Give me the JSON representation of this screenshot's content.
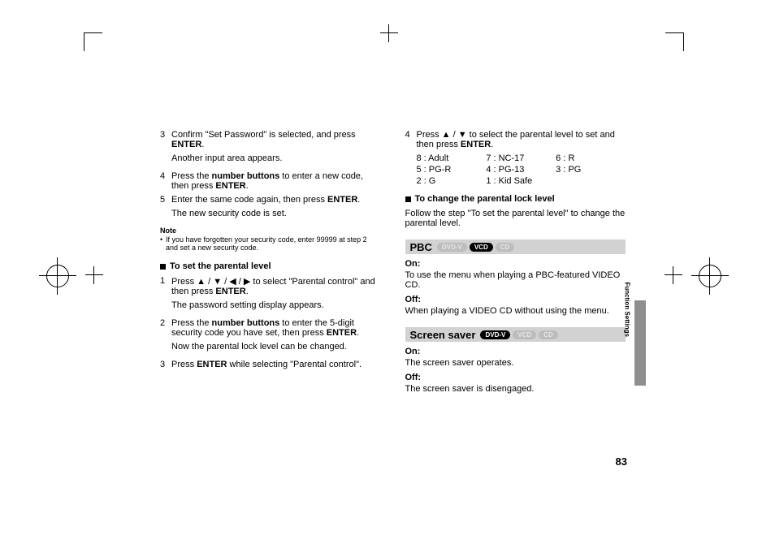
{
  "left": {
    "steps_a": [
      {
        "n": "3",
        "t": "Confirm \"Set Password\" is selected, and press <b>ENTER</b>.",
        "sub": "Another input area appears."
      },
      {
        "n": "4",
        "t": "Press the <b>number buttons</b> to enter a new code, then press <b>ENTER</b>.",
        "sub": ""
      },
      {
        "n": "5",
        "t": "Enter the same code again, then press <b>ENTER</b>.",
        "sub": "The new security code is set."
      }
    ],
    "note_label": "Note",
    "note_body": "If you have forgotten your security code, enter 99999 at step 2 and set a new security code.",
    "sec_b": "To set the parental level",
    "steps_b": [
      {
        "n": "1",
        "t": "Press ▲ / ▼ / ◀ / ▶ to select \"Parental control\" and then press <b>ENTER</b>.",
        "sub": "The password setting display appears."
      },
      {
        "n": "2",
        "t": "Press the <b>number buttons</b> to enter the 5-digit security code you have set, then press <b>ENTER</b>.",
        "sub": "Now the parental lock level can be changed."
      },
      {
        "n": "3",
        "t": "Press <b>ENTER</b> while selecting \"Parental control\".",
        "sub": ""
      }
    ]
  },
  "right": {
    "step4": {
      "n": "4",
      "t": "Press ▲ / ▼ to select the parental level to set and then press <b>ENTER</b>."
    },
    "ratings": [
      [
        "8 : Adult",
        "7 : NC-17",
        "6 : R"
      ],
      [
        "5 : PG-R",
        "4 : PG-13",
        "3 : PG"
      ],
      [
        "2 : G",
        "1 : Kid Safe",
        ""
      ]
    ],
    "sec_change": "To change the parental lock level",
    "change_body": "Follow the step \"To set the parental level\" to change the parental level.",
    "pbc": {
      "title": "PBC",
      "badges": [
        [
          "DVD-V",
          "off"
        ],
        [
          "VCD",
          "on"
        ],
        [
          "CD",
          "off"
        ]
      ],
      "on_label": "On:",
      "on_body": "To use the menu when playing a PBC-featured VIDEO CD.",
      "off_label": "Off:",
      "off_body": "When playing a VIDEO CD without using the menu."
    },
    "ss": {
      "title": "Screen saver",
      "badges": [
        [
          "DVD-V",
          "on"
        ],
        [
          "VCD",
          "off"
        ],
        [
          "CD",
          "off"
        ]
      ],
      "on_label": "On:",
      "on_body": "The screen saver operates.",
      "off_label": "Off:",
      "off_body": "The screen saver is disengaged."
    }
  },
  "side_label": "Function Settings",
  "page_no": "83",
  "colors": {
    "bar": "#d2d2d2",
    "tab": "#8f8f8f",
    "badge_off_bg": "#bdbdbd",
    "badge_off_fg": "#e5e5e5",
    "badge_on_bg": "#000000",
    "badge_on_fg": "#ffffff",
    "bg": "#ffffff"
  }
}
